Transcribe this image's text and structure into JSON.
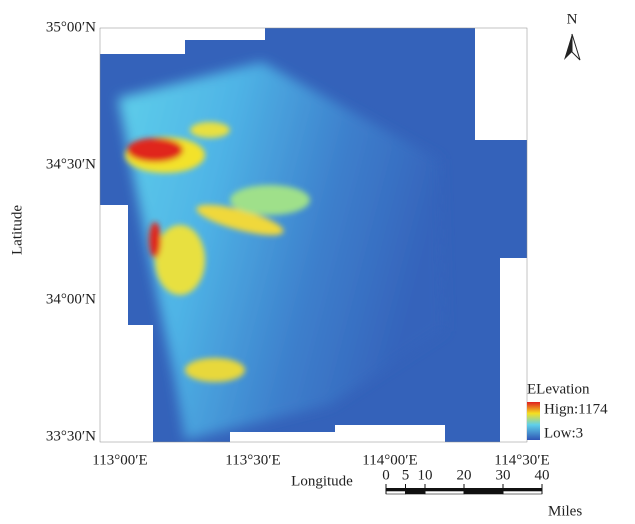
{
  "map": {
    "north_label": "N",
    "y_axis": {
      "title": "Latitude",
      "ticks": [
        "35°00′N",
        "34°30′N",
        "34°00′N",
        "33°30′N"
      ]
    },
    "x_axis": {
      "title": "Longitude",
      "ticks": [
        "113°00′E",
        "113°30′E",
        "114°00′E",
        "114°30′E"
      ]
    },
    "legend": {
      "title": "ELevation",
      "high": "Hign:1174",
      "low": "Low:3"
    },
    "scale_bar": {
      "ticks": [
        0,
        5,
        10,
        20,
        30,
        40
      ],
      "unit": "Miles"
    }
  }
}
